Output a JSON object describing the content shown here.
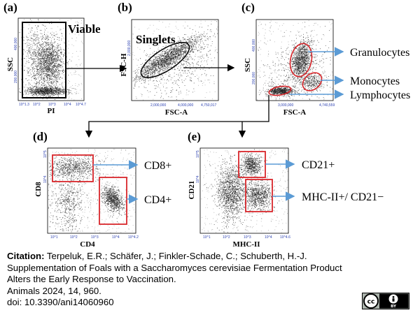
{
  "panels": {
    "a": {
      "letter": "(a)",
      "ylabel": "SSC",
      "xlabel": "PI",
      "gate": "Viable",
      "yticks": [
        "200,000",
        "400,000"
      ],
      "xticks": [
        "10^1.3",
        "10^2",
        "10^3",
        "10^4",
        "10^4.7"
      ]
    },
    "b": {
      "letter": "(b)",
      "ylabel": "FSC-H",
      "xlabel": "FSC-A",
      "gate": "Singlets",
      "yticks": [
        "2,000,000"
      ],
      "xticks": [
        "2,000,000",
        "4,000,000",
        "4,750,017"
      ]
    },
    "c": {
      "letter": "(c)",
      "ylabel": "SSC",
      "xlabel": "FSC-A",
      "yticks": [
        "200,000",
        "400,000"
      ],
      "xticks": [
        "3,000,000",
        "4,740,559"
      ],
      "populations": [
        "Granulocytes",
        "Monocytes",
        "Lymphocytes"
      ]
    },
    "d": {
      "letter": "(d)",
      "ylabel": "CD8",
      "xlabel": "CD4",
      "yticks": [
        "10^4",
        "10^5"
      ],
      "xticks": [
        "10^1",
        "10^2",
        "10^3",
        "10^4",
        "10^4.2"
      ],
      "populations": [
        "CD8+",
        "CD4+"
      ]
    },
    "e": {
      "letter": "(e)",
      "ylabel": "CD21",
      "xlabel": "MHC-II",
      "yticks": [
        "10^4",
        "10^5"
      ],
      "xticks": [
        "10^1",
        "10^2",
        "10^3",
        "10^4",
        "10^4.6"
      ],
      "populations": [
        "CD21+",
        "MHC-II+/ CD21−"
      ]
    }
  },
  "colors": {
    "gate_red": "#d8262b",
    "arrow_blue": "#5b9bd5",
    "tick_blue": "#2a3fb0",
    "dots": "#222222"
  },
  "citation": {
    "label": "Citation:",
    "line1": " Terpeluk, E.R.; Schäfer, J.; Finkler-Schade, C.; Schuberth, H.-J.",
    "line2": "Supplementation of Foals with a Saccharomyces cerevisiae Fermentation Product",
    "line3": "Alters the Early Response to Vaccination.",
    "line4": "Animals 2024, 14, 960.",
    "line5": "doi: 10.3390/ani14060960"
  },
  "license": {
    "cc": "cc",
    "by": "BY"
  }
}
